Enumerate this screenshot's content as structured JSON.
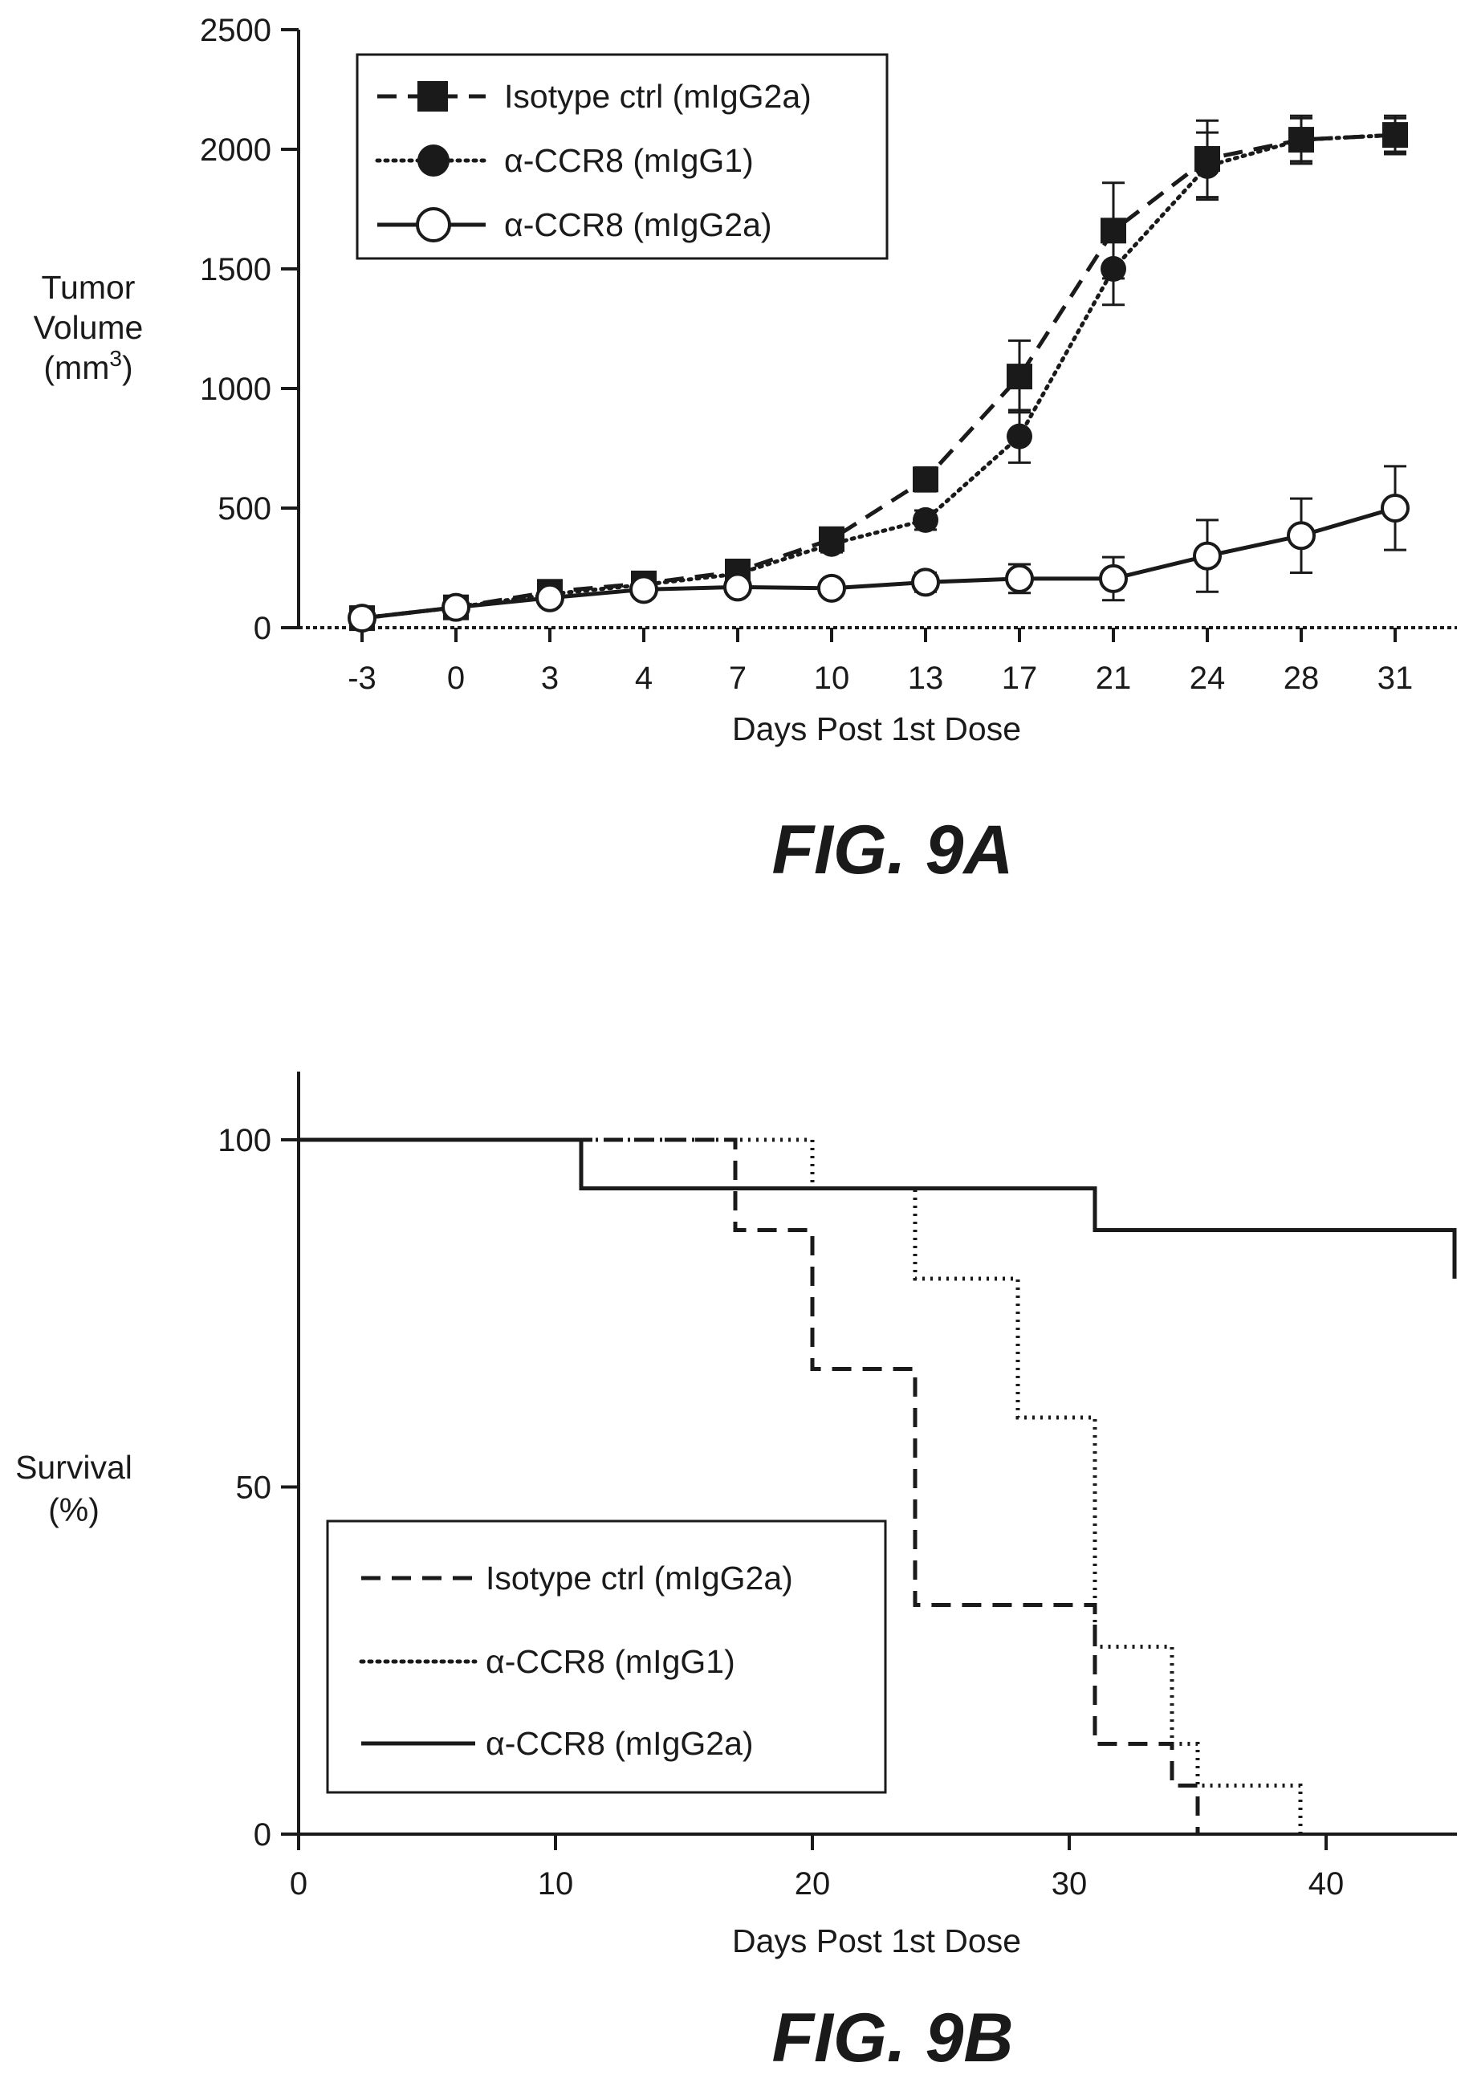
{
  "chart_data": [
    {
      "type": "line",
      "figure_label": "FIG. 9A",
      "xlabel": "Days Post 1st Dose",
      "ylabel_lines": [
        "Tumor",
        "Volume",
        "(mm",
        "3",
        ")"
      ],
      "categories": [
        "-3",
        "0",
        "3",
        "4",
        "7",
        "10",
        "13",
        "17",
        "21",
        "24",
        "28",
        "31"
      ],
      "ylim": [
        0,
        2500
      ],
      "yticks": [
        0,
        500,
        1000,
        1500,
        2000,
        2500
      ],
      "ytick_labels": [
        "0",
        "500",
        "1000",
        "1500",
        "2000",
        "2500"
      ],
      "legend_position": "top-left",
      "series": [
        {
          "name": "Isotype ctrl (mIgG2a)",
          "line_style": "dashed",
          "marker": "filled-square",
          "values": [
            40,
            85,
            150,
            185,
            235,
            370,
            620,
            1050,
            1660,
            1960,
            2040,
            2060
          ],
          "errors": [
            10,
            15,
            20,
            25,
            30,
            40,
            50,
            150,
            200,
            160,
            100,
            80
          ]
        },
        {
          "name": "α-CCR8 (mIgG1)",
          "line_style": "dotted",
          "marker": "filled-circle",
          "values": [
            40,
            85,
            140,
            180,
            225,
            350,
            450,
            800,
            1500,
            1930,
            2040,
            2060
          ],
          "errors": [
            10,
            15,
            20,
            25,
            30,
            35,
            40,
            110,
            150,
            140,
            90,
            70
          ]
        },
        {
          "name": "α-CCR8 (mIgG2a)",
          "line_style": "solid",
          "marker": "open-circle",
          "values": [
            40,
            85,
            125,
            160,
            170,
            165,
            190,
            205,
            205,
            300,
            385,
            500
          ],
          "errors": [
            10,
            15,
            20,
            25,
            30,
            30,
            40,
            60,
            90,
            150,
            155,
            175
          ]
        }
      ]
    },
    {
      "type": "line",
      "step": true,
      "figure_label": "FIG. 9B",
      "xlabel": "Days Post 1st Dose",
      "ylabel_lines": [
        "Survival",
        "(%)"
      ],
      "xlim": [
        0,
        45
      ],
      "xticks": [
        0,
        10,
        20,
        30,
        40
      ],
      "xtick_labels": [
        "0",
        "10",
        "20",
        "30",
        "40"
      ],
      "ylim": [
        0,
        110
      ],
      "yticks": [
        0,
        50,
        100
      ],
      "ytick_labels": [
        "0",
        "50",
        "100"
      ],
      "legend_position": "bottom-left",
      "series": [
        {
          "name": "Isotype ctrl (mIgG2a)",
          "line_style": "dashed",
          "x": [
            0,
            17,
            17,
            20,
            20,
            24,
            24,
            31,
            31,
            34,
            34,
            35,
            35
          ],
          "y": [
            100,
            100,
            87,
            87,
            67,
            67,
            33,
            33,
            13,
            13,
            7,
            7,
            0
          ]
        },
        {
          "name": "α-CCR8 (mIgG1)",
          "line_style": "dotted",
          "x": [
            0,
            20,
            20,
            24,
            24,
            28,
            28,
            31,
            31,
            34,
            34,
            35,
            35,
            39,
            39
          ],
          "y": [
            100,
            100,
            93,
            93,
            80,
            80,
            60,
            60,
            27,
            27,
            13,
            13,
            7,
            7,
            0
          ]
        },
        {
          "name": "α-CCR8 (mIgG2a)",
          "line_style": "solid",
          "x": [
            0,
            11,
            11,
            31,
            31,
            45,
            45
          ],
          "y": [
            100,
            100,
            93,
            93,
            87,
            87,
            80
          ]
        }
      ]
    }
  ]
}
